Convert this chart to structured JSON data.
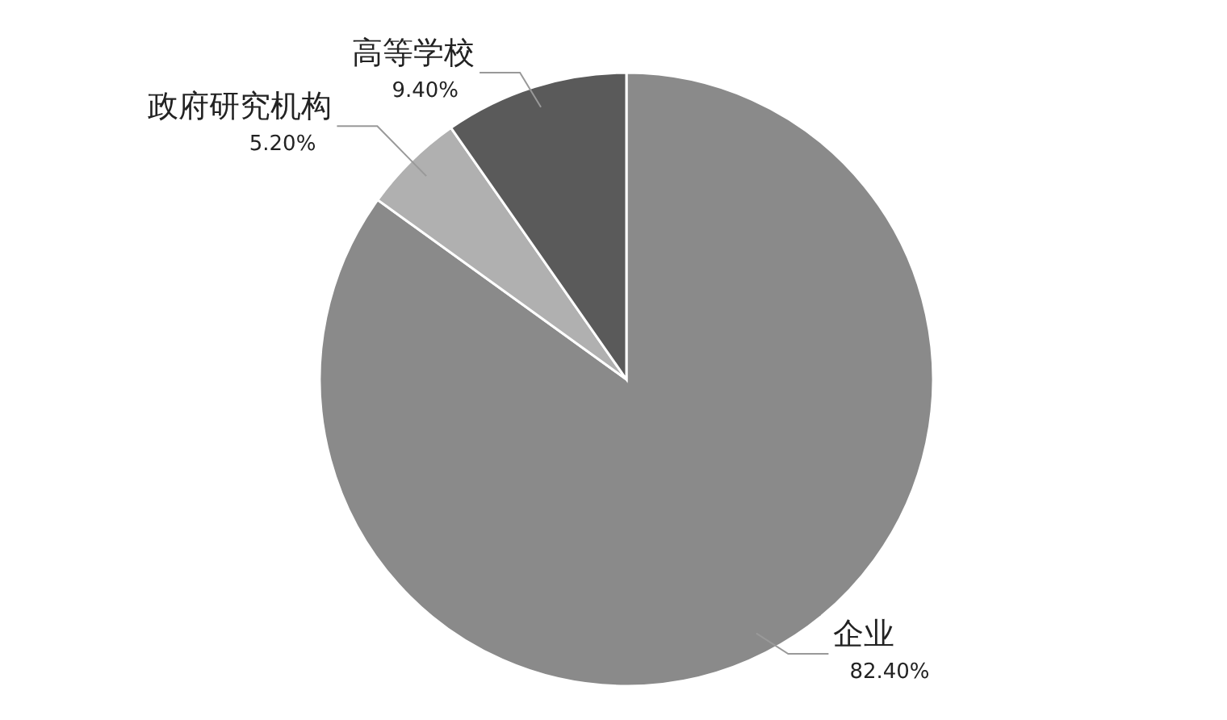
{
  "chart_data": {
    "type": "pie",
    "categories": [
      "企业",
      "政府研究机构",
      "高等学校"
    ],
    "values": [
      82.4,
      5.2,
      9.4
    ],
    "value_labels": [
      "82.40%",
      "5.20%",
      "9.40%"
    ],
    "colors": [
      "#8a8a8a",
      "#b0b0b0",
      "#5a5a5a"
    ],
    "legend": false
  }
}
